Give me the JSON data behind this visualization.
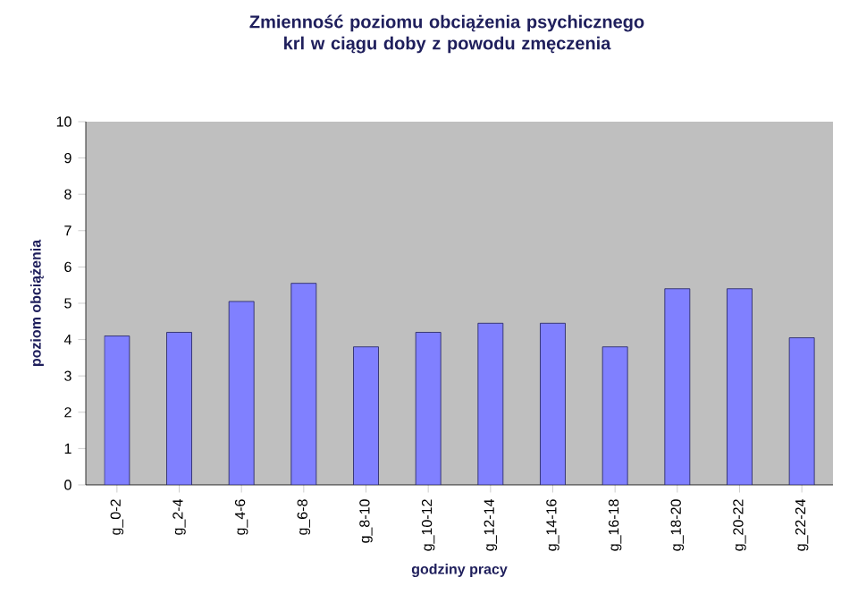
{
  "chart_data": {
    "type": "bar",
    "title": "Zmienność poziomu obciążenia psychicznego krl w ciągu doby z powodu zmęczenia",
    "xlabel": "godziny pracy",
    "ylabel": "poziom obciążenia",
    "categories": [
      "g_0-2",
      "g_2-4",
      "g_4-6",
      "g_6-8",
      "g_8-10",
      "g_10-12",
      "g_12-14",
      "g_14-16",
      "g_16-18",
      "g_18-20",
      "g_20-22",
      "g_22-24"
    ],
    "values": [
      4.1,
      4.2,
      5.05,
      5.55,
      3.8,
      4.2,
      4.45,
      4.45,
      3.8,
      5.4,
      5.4,
      4.05
    ],
    "color": "#8080ff",
    "ylim": [
      0,
      10
    ],
    "yticks": [
      0,
      1,
      2,
      3,
      4,
      5,
      6,
      7,
      8,
      9,
      10
    ],
    "grid": false,
    "legend": false
  }
}
